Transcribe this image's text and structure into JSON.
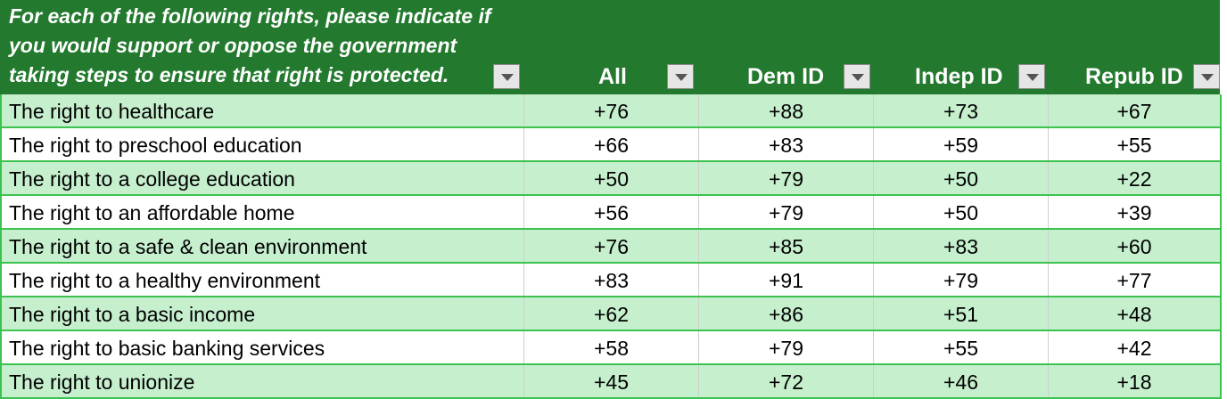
{
  "header": {
    "question": "For each of the following rights, please indicate if\nyou would support or oppose the government\ntaking steps to ensure that right is protected.",
    "columns": [
      "All",
      "Dem ID",
      "Indep ID",
      "Repub ID"
    ]
  },
  "rows": [
    {
      "label": "The right to healthcare",
      "values": [
        "+76",
        "+88",
        "+73",
        "+67"
      ]
    },
    {
      "label": "The right to preschool education",
      "values": [
        "+66",
        "+83",
        "+59",
        "+55"
      ]
    },
    {
      "label": "The right to a college education",
      "values": [
        "+50",
        "+79",
        "+50",
        "+22"
      ]
    },
    {
      "label": "The right to an affordable home",
      "values": [
        "+56",
        "+79",
        "+50",
        "+39"
      ]
    },
    {
      "label": "The right to a safe & clean environment",
      "values": [
        "+76",
        "+85",
        "+83",
        "+60"
      ]
    },
    {
      "label": "The right to a healthy environment",
      "values": [
        "+83",
        "+91",
        "+79",
        "+77"
      ]
    },
    {
      "label": "The right to a basic income",
      "values": [
        "+62",
        "+86",
        "+51",
        "+48"
      ]
    },
    {
      "label": "The right to basic banking services",
      "values": [
        "+58",
        "+79",
        "+55",
        "+42"
      ]
    },
    {
      "label": "The right to unionize",
      "values": [
        "+45",
        "+72",
        "+46",
        "+18"
      ]
    }
  ],
  "colors": {
    "header_bg": "#237a2e",
    "band_green": "#c6efce",
    "border_green": "#3cc34f"
  }
}
